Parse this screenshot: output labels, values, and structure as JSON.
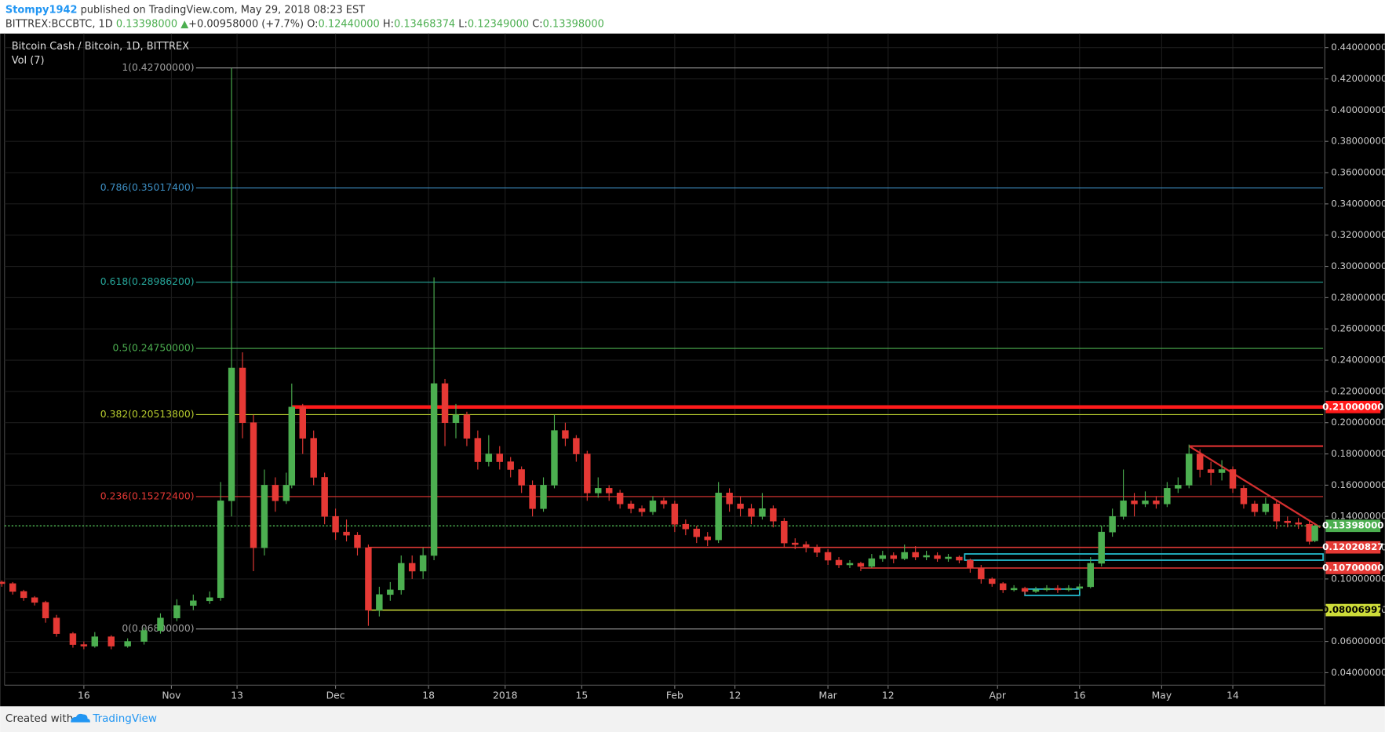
{
  "chart_data": {
    "type": "candlestick",
    "header": {
      "user": "Stompy1942",
      "published": "published on TradingView.com, May 29, 2018 08:23 EST",
      "symbol": "BITTREX:BCCBTC, 1D",
      "last": "0.13398000",
      "arrow": "▲",
      "change": "+0.00958000 (+7.7%)",
      "o_label": "O:",
      "o": "0.12440000",
      "h_label": "H:",
      "h": "0.13468374",
      "l_label": "L:",
      "l": "0.12349000",
      "c_label": "C:",
      "c": "0.13398000"
    },
    "title": "Bitcoin Cash / Bitcoin, 1D, BITTREX",
    "indicator": "Vol (7)",
    "footer": {
      "created": "Created with",
      "brand": "TradingView"
    },
    "up_color": "#4caf50",
    "down_color": "#e53935",
    "grid": true,
    "xlim": [
      0.5,
      241.5
    ],
    "xticks": [
      {
        "value": 15,
        "label": "16"
      },
      {
        "value": 31,
        "label": "Nov"
      },
      {
        "value": 43,
        "label": "13"
      },
      {
        "value": 61,
        "label": "Dec"
      },
      {
        "value": 78,
        "label": "18"
      },
      {
        "value": 92,
        "label": "2018"
      },
      {
        "value": 106,
        "label": "15"
      },
      {
        "value": 123,
        "label": "Feb"
      },
      {
        "value": 134,
        "label": "12"
      },
      {
        "value": 151,
        "label": "Mar"
      },
      {
        "value": 162,
        "label": "12"
      },
      {
        "value": 182,
        "label": "Apr"
      },
      {
        "value": 197,
        "label": "16"
      },
      {
        "value": 212,
        "label": "May"
      },
      {
        "value": 225,
        "label": "14"
      }
    ],
    "ylim": [
      0.032,
      0.449
    ],
    "yticks": [
      {
        "value": 0.04,
        "label": "0.04000000"
      },
      {
        "value": 0.06,
        "label": "0.06000000"
      },
      {
        "value": 0.08,
        "label": "0.08000000"
      },
      {
        "value": 0.1,
        "label": "0.10000000"
      },
      {
        "value": 0.12,
        "label": "0.12000000"
      },
      {
        "value": 0.14,
        "label": "0.14000000"
      },
      {
        "value": 0.16,
        "label": "0.16000000"
      },
      {
        "value": 0.18,
        "label": "0.18000000"
      },
      {
        "value": 0.2,
        "label": "0.20000000"
      },
      {
        "value": 0.22,
        "label": "0.22000000"
      },
      {
        "value": 0.24,
        "label": "0.24000000"
      },
      {
        "value": 0.26,
        "label": "0.26000000"
      },
      {
        "value": 0.28,
        "label": "0.28000000"
      },
      {
        "value": 0.3,
        "label": "0.30000000"
      },
      {
        "value": 0.32,
        "label": "0.32000000"
      },
      {
        "value": 0.34,
        "label": "0.34000000"
      },
      {
        "value": 0.36,
        "label": "0.36000000"
      },
      {
        "value": 0.38,
        "label": "0.38000000"
      },
      {
        "value": 0.4,
        "label": "0.40000000"
      },
      {
        "value": 0.42,
        "label": "0.42000000"
      },
      {
        "value": 0.44,
        "label": "0.44000000"
      }
    ],
    "fib_from": 35.5,
    "fib_levels": [
      {
        "value": 0.427,
        "label": "1(0.42700000)",
        "color": "#9e9e9e"
      },
      {
        "value": 0.350174,
        "label": "0.786(0.35017400)",
        "color": "#3d8fc4"
      },
      {
        "value": 0.289862,
        "label": "0.618(0.28986200)",
        "color": "#26a69a"
      },
      {
        "value": 0.2475,
        "label": "0.5(0.24750000)",
        "color": "#4caf50"
      },
      {
        "value": 0.205138,
        "label": "0.382(0.20513800)",
        "color": "#b7cc2e"
      },
      {
        "value": 0.152724,
        "label": "0.236(0.15272400)",
        "color": "#e53935"
      },
      {
        "value": 0.068,
        "label": "0(0.06800000)",
        "color": "#9e9e9e"
      }
    ],
    "price_lines": [
      {
        "value": 0.21,
        "label": "0.21000000",
        "color": "#ff1a1a",
        "from": 53,
        "style": "thick"
      },
      {
        "value": 0.13398,
        "label": "0.13398000",
        "color": "#4caf50",
        "from": 0.5,
        "style": "dotted"
      },
      {
        "value": 0.12020827,
        "label": "0.12020827",
        "color": "#e53935",
        "from": 67,
        "style": "solid"
      },
      {
        "value": 0.107,
        "label": "0.10700000",
        "color": "#e53935",
        "from": 157,
        "style": "solid"
      },
      {
        "value": 0.08006997,
        "label": "0.08006997",
        "color": "#cddc39",
        "from": 67,
        "style": "solid"
      }
    ],
    "drawings": [
      {
        "kind": "segment",
        "x": [
          217,
          241.5
        ],
        "y": [
          0.185,
          0.185
        ],
        "color": "#d32f2f"
      },
      {
        "kind": "segment",
        "x": [
          217,
          241
        ],
        "y": [
          0.185,
          0.133
        ],
        "color": "#d32f2f"
      },
      {
        "kind": "box",
        "x": [
          176,
          241.5
        ],
        "y": [
          0.112,
          0.116
        ],
        "color": "#26c6da"
      },
      {
        "kind": "box",
        "x": [
          187,
          197
        ],
        "y": [
          0.0895,
          0.0935
        ],
        "color": "#26c6da"
      }
    ],
    "candles": [
      [
        0,
        0.098,
        0.099,
        0.095,
        0.097
      ],
      [
        2,
        0.097,
        0.098,
        0.09,
        0.092
      ],
      [
        4,
        0.092,
        0.093,
        0.086,
        0.088
      ],
      [
        6,
        0.088,
        0.089,
        0.083,
        0.085
      ],
      [
        8,
        0.085,
        0.086,
        0.072,
        0.075
      ],
      [
        10,
        0.075,
        0.077,
        0.063,
        0.065
      ],
      [
        13,
        0.065,
        0.066,
        0.056,
        0.058
      ],
      [
        15,
        0.058,
        0.06,
        0.055,
        0.057
      ],
      [
        17,
        0.057,
        0.066,
        0.056,
        0.063
      ],
      [
        20,
        0.063,
        0.064,
        0.055,
        0.057
      ],
      [
        23,
        0.057,
        0.062,
        0.056,
        0.06
      ],
      [
        26,
        0.06,
        0.069,
        0.058,
        0.067
      ],
      [
        29,
        0.067,
        0.078,
        0.065,
        0.075
      ],
      [
        32,
        0.075,
        0.087,
        0.073,
        0.083
      ],
      [
        35,
        0.083,
        0.09,
        0.08,
        0.086
      ],
      [
        38,
        0.086,
        0.092,
        0.084,
        0.088
      ],
      [
        40,
        0.088,
        0.162,
        0.086,
        0.15
      ],
      [
        42,
        0.15,
        0.427,
        0.14,
        0.235
      ],
      [
        44,
        0.235,
        0.245,
        0.19,
        0.2
      ],
      [
        46,
        0.2,
        0.205,
        0.105,
        0.12
      ],
      [
        48,
        0.12,
        0.17,
        0.115,
        0.16
      ],
      [
        50,
        0.16,
        0.165,
        0.143,
        0.15
      ],
      [
        52,
        0.15,
        0.168,
        0.148,
        0.16
      ],
      [
        53,
        0.16,
        0.225,
        0.158,
        0.21
      ],
      [
        55,
        0.21,
        0.212,
        0.18,
        0.19
      ],
      [
        57,
        0.19,
        0.195,
        0.16,
        0.165
      ],
      [
        59,
        0.165,
        0.168,
        0.135,
        0.14
      ],
      [
        61,
        0.14,
        0.145,
        0.125,
        0.13
      ],
      [
        63,
        0.13,
        0.138,
        0.124,
        0.128
      ],
      [
        65,
        0.128,
        0.13,
        0.115,
        0.12
      ],
      [
        67,
        0.12,
        0.122,
        0.07,
        0.08
      ],
      [
        69,
        0.08,
        0.095,
        0.076,
        0.09
      ],
      [
        71,
        0.09,
        0.098,
        0.086,
        0.093
      ],
      [
        73,
        0.093,
        0.115,
        0.09,
        0.11
      ],
      [
        75,
        0.11,
        0.115,
        0.1,
        0.105
      ],
      [
        77,
        0.105,
        0.12,
        0.1,
        0.115
      ],
      [
        79,
        0.115,
        0.293,
        0.112,
        0.225
      ],
      [
        81,
        0.225,
        0.228,
        0.185,
        0.2
      ],
      [
        83,
        0.2,
        0.212,
        0.19,
        0.205
      ],
      [
        85,
        0.205,
        0.207,
        0.185,
        0.19
      ],
      [
        87,
        0.19,
        0.195,
        0.17,
        0.175
      ],
      [
        89,
        0.175,
        0.192,
        0.172,
        0.18
      ],
      [
        91,
        0.18,
        0.185,
        0.17,
        0.175
      ],
      [
        93,
        0.175,
        0.178,
        0.165,
        0.17
      ],
      [
        95,
        0.17,
        0.172,
        0.155,
        0.16
      ],
      [
        97,
        0.16,
        0.163,
        0.14,
        0.145
      ],
      [
        99,
        0.145,
        0.165,
        0.143,
        0.16
      ],
      [
        101,
        0.16,
        0.205,
        0.158,
        0.195
      ],
      [
        103,
        0.195,
        0.2,
        0.185,
        0.19
      ],
      [
        105,
        0.19,
        0.192,
        0.175,
        0.18
      ],
      [
        107,
        0.18,
        0.182,
        0.15,
        0.155
      ],
      [
        109,
        0.155,
        0.165,
        0.152,
        0.158
      ],
      [
        111,
        0.158,
        0.16,
        0.15,
        0.155
      ],
      [
        113,
        0.155,
        0.157,
        0.145,
        0.148
      ],
      [
        115,
        0.148,
        0.15,
        0.142,
        0.145
      ],
      [
        117,
        0.145,
        0.147,
        0.14,
        0.143
      ],
      [
        119,
        0.143,
        0.153,
        0.141,
        0.15
      ],
      [
        121,
        0.15,
        0.152,
        0.145,
        0.148
      ],
      [
        123,
        0.148,
        0.15,
        0.13,
        0.135
      ],
      [
        125,
        0.135,
        0.138,
        0.128,
        0.132
      ],
      [
        127,
        0.132,
        0.134,
        0.123,
        0.127
      ],
      [
        129,
        0.127,
        0.13,
        0.121,
        0.125
      ],
      [
        131,
        0.125,
        0.162,
        0.123,
        0.155
      ],
      [
        133,
        0.155,
        0.158,
        0.143,
        0.148
      ],
      [
        135,
        0.148,
        0.153,
        0.14,
        0.145
      ],
      [
        137,
        0.145,
        0.148,
        0.135,
        0.14
      ],
      [
        139,
        0.14,
        0.155,
        0.138,
        0.145
      ],
      [
        141,
        0.145,
        0.147,
        0.133,
        0.137
      ],
      [
        143,
        0.137,
        0.139,
        0.12,
        0.123
      ],
      [
        145,
        0.123,
        0.126,
        0.119,
        0.122
      ],
      [
        147,
        0.122,
        0.124,
        0.117,
        0.12
      ],
      [
        149,
        0.12,
        0.122,
        0.114,
        0.117
      ],
      [
        151,
        0.117,
        0.119,
        0.109,
        0.112
      ],
      [
        153,
        0.112,
        0.114,
        0.107,
        0.109
      ],
      [
        155,
        0.109,
        0.112,
        0.107,
        0.11
      ],
      [
        157,
        0.11,
        0.111,
        0.105,
        0.108
      ],
      [
        159,
        0.108,
        0.116,
        0.107,
        0.113
      ],
      [
        161,
        0.113,
        0.118,
        0.111,
        0.115
      ],
      [
        163,
        0.115,
        0.117,
        0.11,
        0.113
      ],
      [
        165,
        0.113,
        0.122,
        0.112,
        0.117
      ],
      [
        167,
        0.117,
        0.121,
        0.112,
        0.114
      ],
      [
        169,
        0.114,
        0.118,
        0.112,
        0.115
      ],
      [
        171,
        0.115,
        0.117,
        0.111,
        0.113
      ],
      [
        173,
        0.113,
        0.116,
        0.111,
        0.114
      ],
      [
        175,
        0.114,
        0.115,
        0.11,
        0.112
      ],
      [
        177,
        0.112,
        0.113,
        0.104,
        0.107
      ],
      [
        179,
        0.107,
        0.109,
        0.097,
        0.1
      ],
      [
        181,
        0.1,
        0.101,
        0.095,
        0.097
      ],
      [
        183,
        0.097,
        0.098,
        0.091,
        0.093
      ],
      [
        185,
        0.093,
        0.096,
        0.092,
        0.094
      ],
      [
        187,
        0.094,
        0.095,
        0.09,
        0.092
      ],
      [
        189,
        0.092,
        0.095,
        0.091,
        0.093
      ],
      [
        191,
        0.093,
        0.096,
        0.092,
        0.094
      ],
      [
        193,
        0.094,
        0.096,
        0.091,
        0.093
      ],
      [
        195,
        0.093,
        0.096,
        0.092,
        0.094
      ],
      [
        197,
        0.094,
        0.097,
        0.092,
        0.095
      ],
      [
        199,
        0.095,
        0.114,
        0.094,
        0.11
      ],
      [
        201,
        0.11,
        0.134,
        0.108,
        0.13
      ],
      [
        203,
        0.13,
        0.145,
        0.127,
        0.14
      ],
      [
        205,
        0.14,
        0.17,
        0.138,
        0.15
      ],
      [
        207,
        0.15,
        0.155,
        0.14,
        0.148
      ],
      [
        209,
        0.148,
        0.156,
        0.146,
        0.15
      ],
      [
        211,
        0.15,
        0.153,
        0.145,
        0.148
      ],
      [
        213,
        0.148,
        0.162,
        0.146,
        0.158
      ],
      [
        215,
        0.158,
        0.165,
        0.155,
        0.16
      ],
      [
        217,
        0.16,
        0.186,
        0.158,
        0.18
      ],
      [
        219,
        0.18,
        0.183,
        0.165,
        0.17
      ],
      [
        221,
        0.17,
        0.175,
        0.16,
        0.168
      ],
      [
        223,
        0.168,
        0.176,
        0.163,
        0.17
      ],
      [
        225,
        0.17,
        0.172,
        0.155,
        0.158
      ],
      [
        227,
        0.158,
        0.16,
        0.145,
        0.148
      ],
      [
        229,
        0.148,
        0.15,
        0.14,
        0.143
      ],
      [
        231,
        0.143,
        0.152,
        0.141,
        0.148
      ],
      [
        233,
        0.148,
        0.15,
        0.132,
        0.137
      ],
      [
        235,
        0.137,
        0.14,
        0.133,
        0.136
      ],
      [
        237,
        0.136,
        0.139,
        0.132,
        0.135
      ],
      [
        239,
        0.135,
        0.137,
        0.122,
        0.124
      ],
      [
        240,
        0.1244,
        0.13468374,
        0.12349,
        0.13398
      ]
    ]
  }
}
